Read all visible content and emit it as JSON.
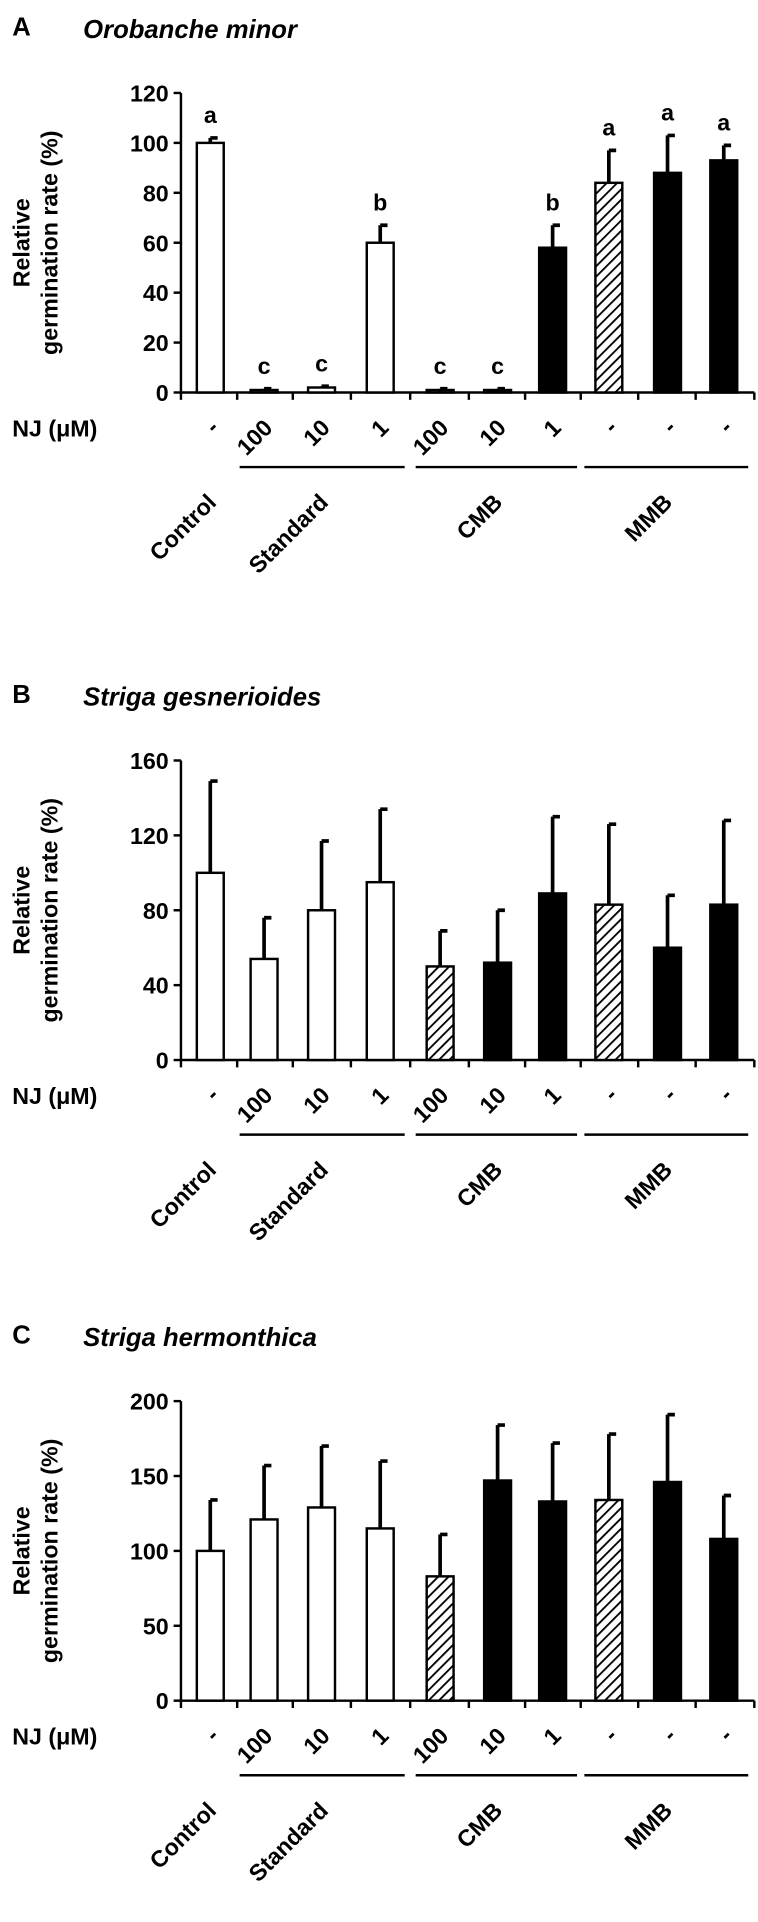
{
  "chart_data": [
    {
      "type": "bar",
      "panel": "A",
      "title": "Orobanche minor",
      "y_label": [
        "Relative",
        "germination rate (%)"
      ],
      "x_axis_label": "NJ (μM)",
      "categories": [
        "-",
        "100",
        "10",
        "1",
        "100",
        "10",
        "1",
        "-",
        "-",
        "-"
      ],
      "values": [
        100,
        1,
        2,
        60,
        1,
        1,
        58,
        84,
        88,
        93
      ],
      "errors": [
        2,
        0.5,
        0.5,
        7,
        0.5,
        0.5,
        9,
        13,
        15,
        6
      ],
      "annotations": [
        "a",
        "c",
        "c",
        "b",
        "c",
        "c",
        "b",
        "a",
        "a",
        "a"
      ],
      "fills": [
        "white",
        "white",
        "white",
        "white",
        "hatch",
        "black",
        "black",
        "hatch",
        "black",
        "black"
      ],
      "groups": [
        {
          "name": "Control",
          "start": 0,
          "end": 0
        },
        {
          "name": "Standard",
          "start": 1,
          "end": 3
        },
        {
          "name": "CMB",
          "start": 4,
          "end": 6
        },
        {
          "name": "MMB",
          "start": 7,
          "end": 9
        }
      ],
      "ylim": [
        0,
        120
      ],
      "yticks": [
        0,
        20,
        40,
        60,
        80,
        100,
        120
      ]
    },
    {
      "type": "bar",
      "panel": "B",
      "title": "Striga gesnerioides",
      "y_label": [
        "Relative",
        "germination rate (%)"
      ],
      "x_axis_label": "NJ (μM)",
      "categories": [
        "-",
        "100",
        "10",
        "1",
        "100",
        "10",
        "1",
        "-",
        "-",
        "-"
      ],
      "values": [
        100,
        54,
        80,
        95,
        50,
        52,
        89,
        83,
        60,
        83
      ],
      "errors": [
        49,
        22,
        37,
        39,
        19,
        28,
        41,
        43,
        28,
        45
      ],
      "fills": [
        "white",
        "white",
        "white",
        "white",
        "hatch",
        "black",
        "black",
        "hatch",
        "black",
        "black"
      ],
      "groups": [
        {
          "name": "Control",
          "start": 0,
          "end": 0
        },
        {
          "name": "Standard",
          "start": 1,
          "end": 3
        },
        {
          "name": "CMB",
          "start": 4,
          "end": 6
        },
        {
          "name": "MMB",
          "start": 7,
          "end": 9
        }
      ],
      "ylim": [
        0,
        160
      ],
      "yticks": [
        0,
        40,
        80,
        120,
        160
      ]
    },
    {
      "type": "bar",
      "panel": "C",
      "title": "Striga hermonthica",
      "y_label": [
        "Relative",
        "germination rate (%)"
      ],
      "x_axis_label": "NJ (μM)",
      "categories": [
        "-",
        "100",
        "10",
        "1",
        "100",
        "10",
        "1",
        "-",
        "-",
        "-"
      ],
      "values": [
        100,
        121,
        129,
        115,
        83,
        147,
        133,
        134,
        146,
        108
      ],
      "errors": [
        34,
        36,
        41,
        45,
        28,
        37,
        39,
        44,
        45,
        29
      ],
      "fills": [
        "white",
        "white",
        "white",
        "white",
        "hatch",
        "black",
        "black",
        "hatch",
        "black",
        "black"
      ],
      "groups": [
        {
          "name": "Control",
          "start": 0,
          "end": 0
        },
        {
          "name": "Standard",
          "start": 1,
          "end": 3
        },
        {
          "name": "CMB",
          "start": 4,
          "end": 6
        },
        {
          "name": "MMB",
          "start": 7,
          "end": 9
        }
      ],
      "ylim": [
        0,
        200
      ],
      "yticks": [
        0,
        50,
        100,
        150,
        200
      ]
    }
  ]
}
